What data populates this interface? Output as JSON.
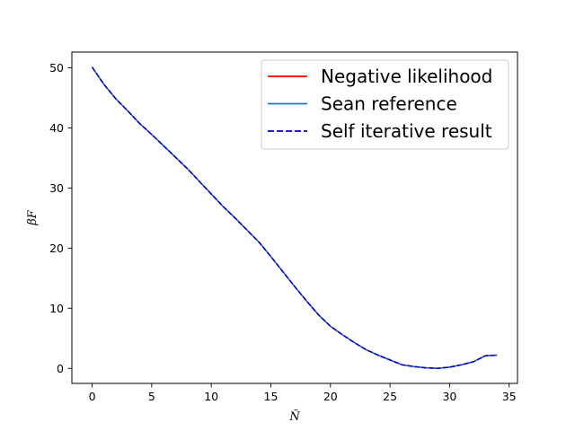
{
  "chart_data": {
    "type": "line",
    "title": "",
    "xlabel": "Ñ",
    "ylabel": "βF",
    "xlim": [
      -1.7,
      35.7
    ],
    "ylim": [
      -2.5,
      52.6
    ],
    "xticks": [
      0,
      5,
      10,
      15,
      20,
      25,
      30,
      35
    ],
    "yticks": [
      0,
      10,
      20,
      30,
      40,
      50
    ],
    "grid": false,
    "legend_position": "top-right",
    "x": [
      0,
      1,
      2,
      3,
      4,
      5,
      6,
      7,
      8,
      9,
      10,
      11,
      12,
      13,
      14,
      15,
      16,
      17,
      18,
      19,
      20,
      21,
      22,
      23,
      24,
      25,
      26,
      27,
      28,
      29,
      30,
      31,
      32,
      33,
      34
    ],
    "series": [
      {
        "name": "Negative likelihood",
        "color": "#ff0000",
        "linestyle": "solid",
        "values": [
          50.1,
          47.2,
          44.8,
          42.8,
          40.7,
          38.9,
          37.0,
          35.1,
          33.2,
          31.1,
          29.0,
          26.9,
          25.0,
          23.0,
          21.0,
          18.6,
          16.1,
          13.6,
          11.2,
          8.9,
          7.0,
          5.6,
          4.3,
          3.1,
          2.2,
          1.4,
          0.6,
          0.3,
          0.1,
          0.0,
          0.2,
          0.6,
          1.1,
          2.1,
          2.2
        ]
      },
      {
        "name": "Sean reference",
        "color": "#1f77b4",
        "linestyle": "solid",
        "values": [
          50.1,
          47.2,
          44.8,
          42.8,
          40.7,
          38.9,
          37.0,
          35.1,
          33.2,
          31.1,
          29.0,
          26.9,
          25.0,
          23.0,
          21.0,
          18.6,
          16.1,
          13.6,
          11.2,
          8.9,
          7.0,
          5.6,
          4.3,
          3.1,
          2.2,
          1.4,
          0.6,
          0.3,
          0.1,
          0.0,
          0.2,
          0.6,
          1.1,
          2.1,
          2.2
        ]
      },
      {
        "name": "Self iterative result",
        "color": "#0000cc",
        "linestyle": "dashed",
        "values": [
          50.1,
          47.2,
          44.8,
          42.8,
          40.7,
          38.9,
          37.0,
          35.1,
          33.2,
          31.1,
          29.0,
          26.9,
          25.0,
          23.0,
          21.0,
          18.6,
          16.1,
          13.6,
          11.2,
          8.9,
          7.0,
          5.6,
          4.3,
          3.1,
          2.2,
          1.4,
          0.6,
          0.3,
          0.1,
          0.0,
          0.2,
          0.6,
          1.1,
          2.1,
          2.2
        ]
      }
    ]
  }
}
